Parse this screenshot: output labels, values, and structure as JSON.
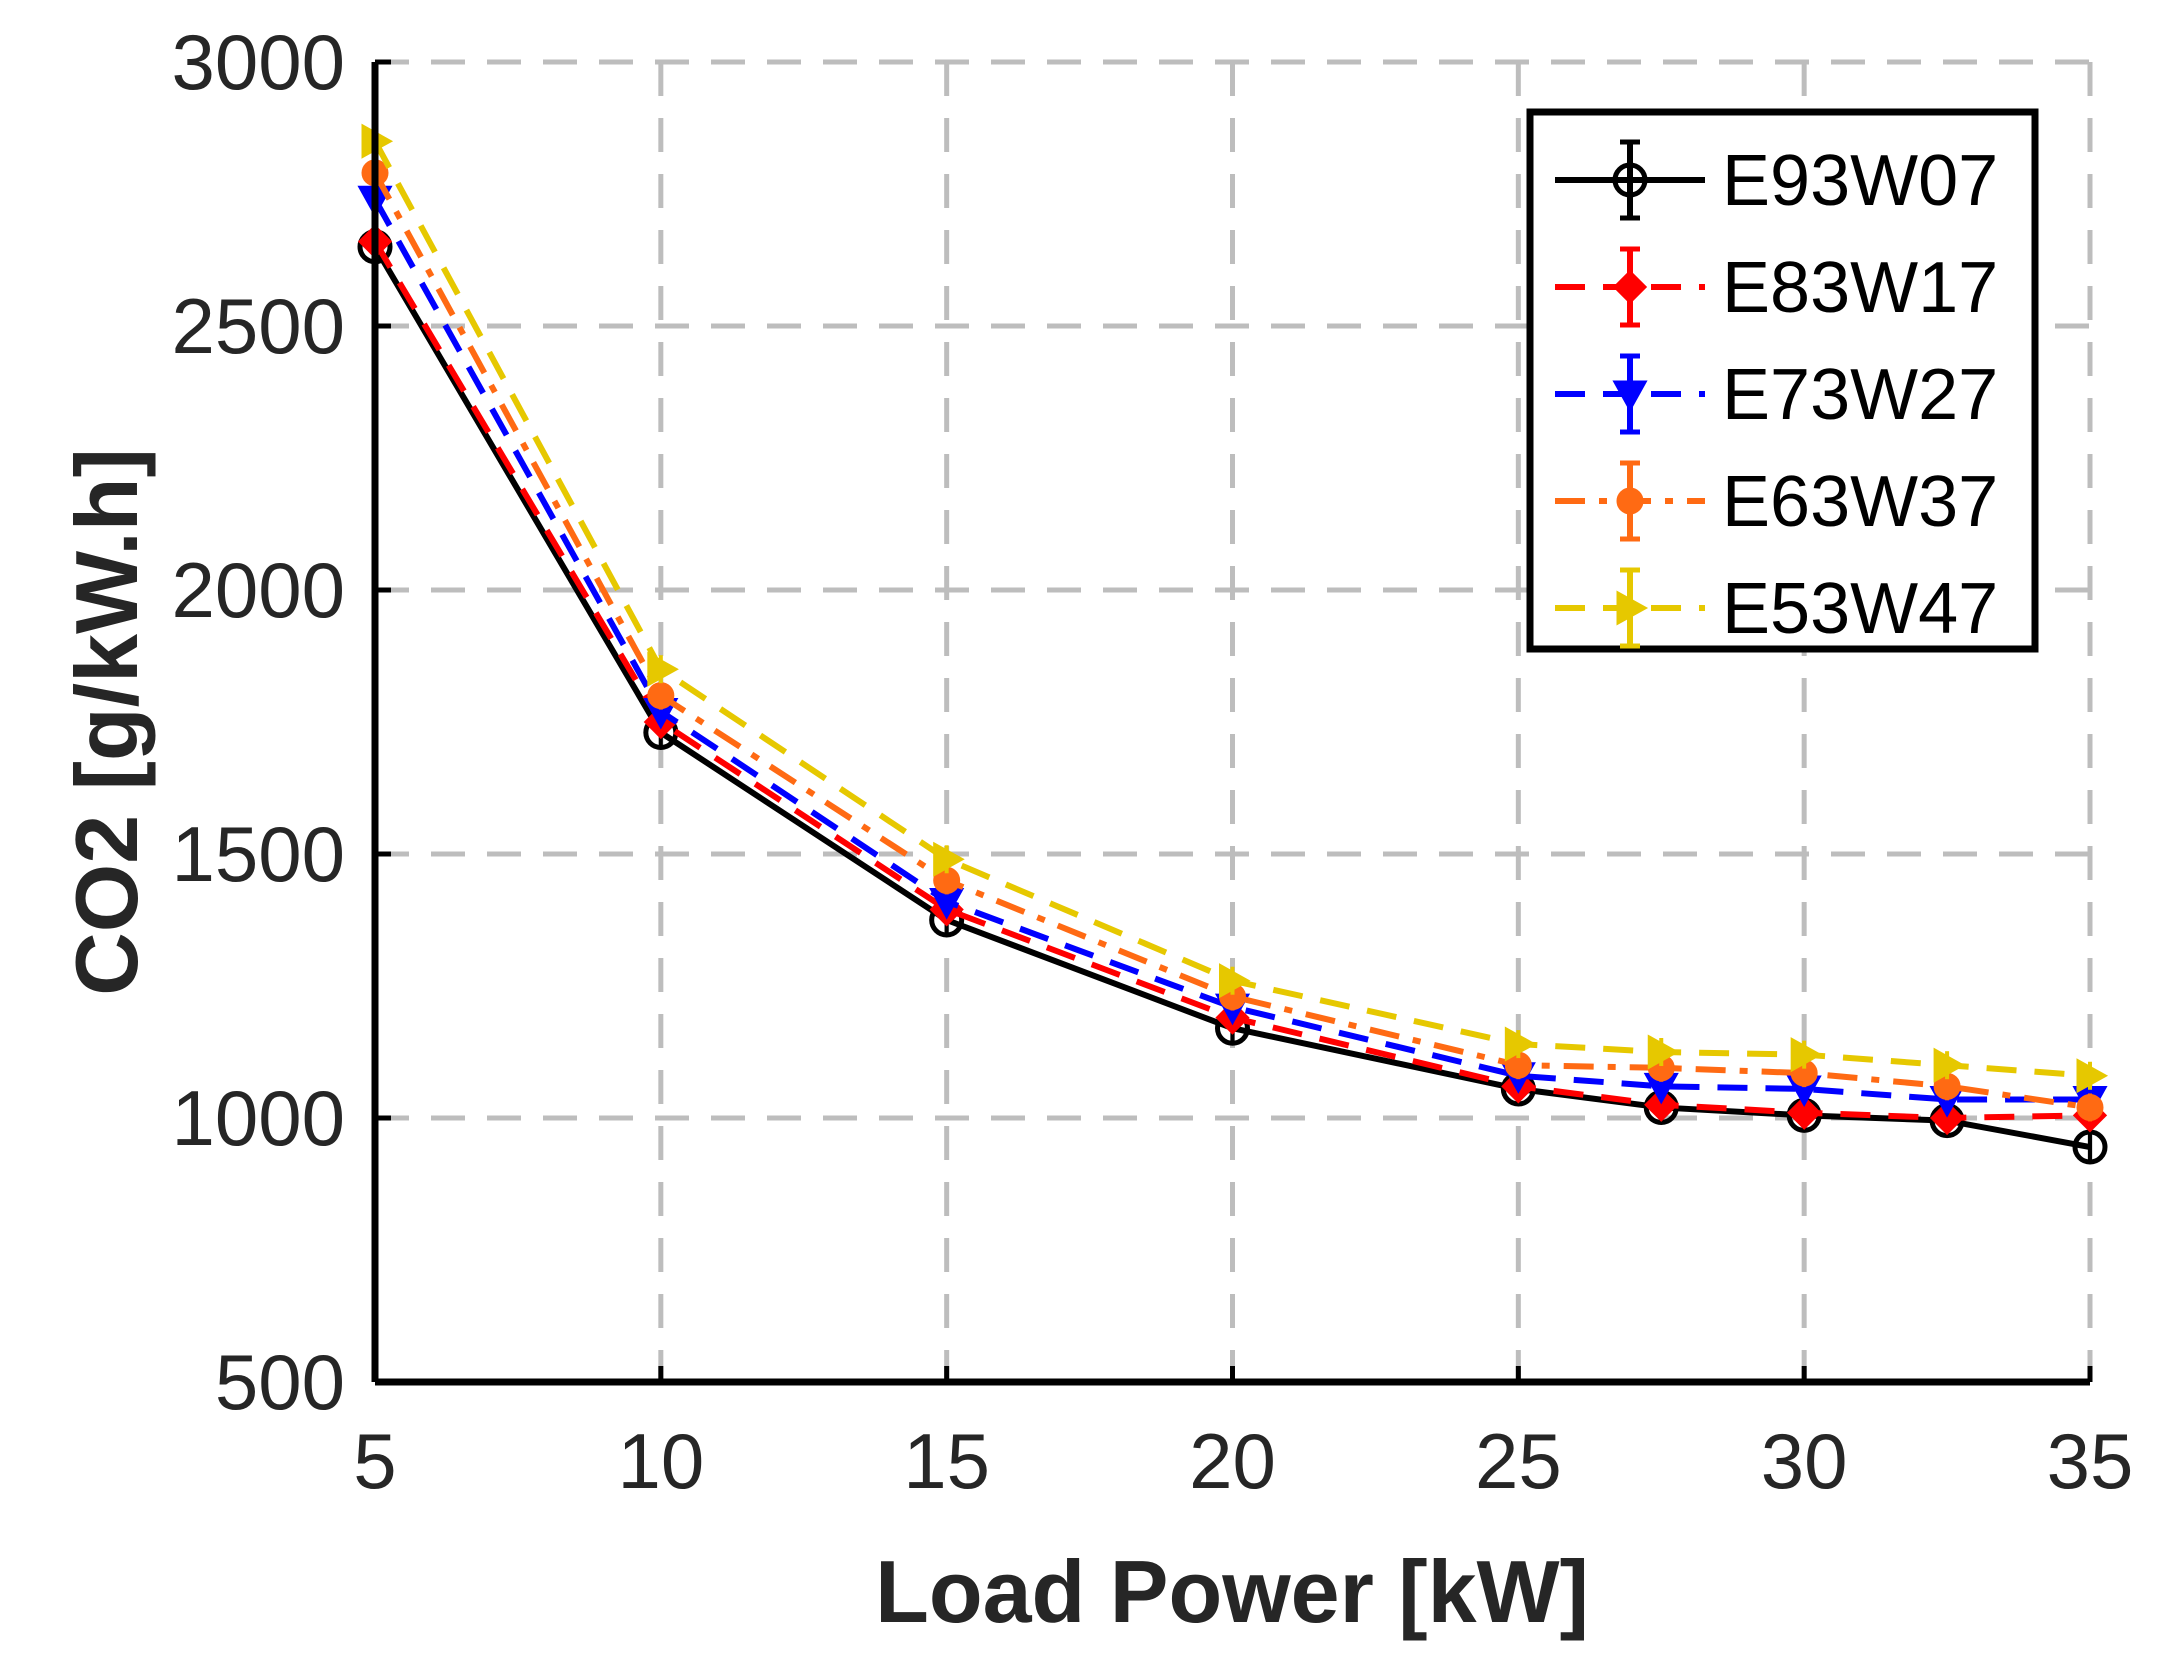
{
  "chart_data": {
    "type": "line",
    "title": "",
    "xlabel": "Load Power [kW]",
    "ylabel": "CO2 [g/kW.h]",
    "xlim": [
      5,
      35
    ],
    "ylim": [
      500,
      3000
    ],
    "x_ticks": [
      5,
      10,
      15,
      20,
      25,
      30,
      35
    ],
    "y_ticks": [
      500,
      1000,
      1500,
      2000,
      2500,
      3000
    ],
    "grid": true,
    "legend_position": "top-right",
    "x": [
      5,
      10,
      15,
      20,
      25,
      27.5,
      30,
      32.5,
      35
    ],
    "series": [
      {
        "name": "E93W07",
        "color": "#000000",
        "marker": "circle",
        "dash": "solid",
        "values": [
          2650,
          1730,
          1375,
          1170,
          1055,
          1020,
          1005,
          995,
          945
        ]
      },
      {
        "name": "E83W17",
        "color": "#ff0000",
        "marker": "diamond",
        "dash": "dashed",
        "values": [
          2660,
          1750,
          1395,
          1190,
          1060,
          1025,
          1010,
          1000,
          1005
        ]
      },
      {
        "name": "E73W27",
        "color": "#0000ff",
        "marker": "triangle-down",
        "dash": "dashed",
        "values": [
          2740,
          1770,
          1410,
          1210,
          1080,
          1060,
          1055,
          1035,
          1035
        ]
      },
      {
        "name": "E63W37",
        "color": "#ff6a13",
        "marker": "dot",
        "dash": "dashdot",
        "values": [
          2790,
          1800,
          1450,
          1230,
          1100,
          1095,
          1085,
          1060,
          1020
        ]
      },
      {
        "name": "E53W47",
        "color": "#e6c800",
        "marker": "triangle-right",
        "dash": "dashed",
        "values": [
          2850,
          1850,
          1490,
          1260,
          1140,
          1125,
          1120,
          1100,
          1080
        ]
      }
    ]
  }
}
